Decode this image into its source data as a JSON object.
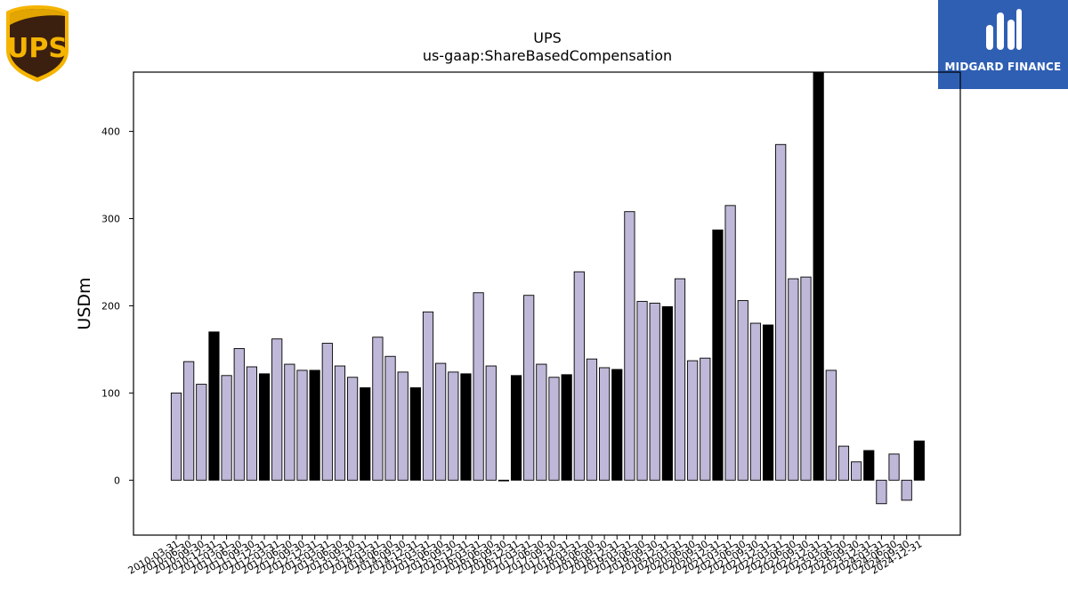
{
  "logos": {
    "left_text": "UPS",
    "right_text": "MIDGARD FINANCE"
  },
  "colors": {
    "bar_fill": "#bfb8d8",
    "bar_highlight": "#000000",
    "bar_edge": "#000000",
    "ups_brown": "#3b1f0f",
    "ups_gold": "#f5b400",
    "midgard_blue": "#2f5fb3"
  },
  "chart_data": {
    "type": "bar",
    "title": "UPS",
    "subtitle": "us-gaap:ShareBasedCompensation",
    "ylabel": "USDm",
    "xlabel": "",
    "ylim": [
      -63,
      468
    ],
    "yticks": [
      0,
      100,
      200,
      300,
      400
    ],
    "grid": false,
    "categories": [
      "2010-03-31",
      "2010-06-30",
      "2010-09-30",
      "2010-12-31",
      "2011-03-31",
      "2011-06-30",
      "2011-09-30",
      "2011-12-31",
      "2012-03-31",
      "2012-06-30",
      "2012-09-30",
      "2012-12-31",
      "2013-03-31",
      "2013-06-30",
      "2013-09-30",
      "2013-12-31",
      "2014-03-31",
      "2014-06-30",
      "2014-09-30",
      "2014-12-31",
      "2015-03-31",
      "2015-06-30",
      "2015-09-30",
      "2015-12-31",
      "2016-03-31",
      "2016-06-30",
      "2016-09-30",
      "2016-12-31",
      "2017-03-31",
      "2017-06-30",
      "2017-09-30",
      "2017-12-31",
      "2018-03-31",
      "2018-06-30",
      "2018-09-30",
      "2018-12-31",
      "2019-03-31",
      "2019-06-30",
      "2019-09-30",
      "2019-12-31",
      "2020-03-31",
      "2020-06-30",
      "2020-09-30",
      "2020-12-31",
      "2021-03-31",
      "2021-06-30",
      "2021-09-30",
      "2021-12-31",
      "2022-03-31",
      "2022-06-30",
      "2022-09-30",
      "2022-12-31",
      "2023-03-31",
      "2023-06-30",
      "2023-09-30",
      "2023-12-31",
      "2024-03-31",
      "2024-06-30",
      "2024-09-30",
      "2024-12-31"
    ],
    "values": [
      100,
      136,
      110,
      170,
      120,
      151,
      130,
      122,
      162,
      133,
      126,
      126,
      157,
      131,
      118,
      106,
      164,
      142,
      124,
      106,
      193,
      134,
      124,
      122,
      215,
      131,
      0,
      120,
      212,
      133,
      118,
      121,
      239,
      139,
      129,
      127,
      308,
      205,
      203,
      199,
      231,
      137,
      140,
      287,
      315,
      206,
      180,
      178,
      385,
      231,
      233,
      470,
      126,
      39,
      21,
      34,
      -27,
      30,
      -23,
      45
    ],
    "highlight": [
      false,
      false,
      false,
      true,
      false,
      false,
      false,
      true,
      false,
      false,
      false,
      true,
      false,
      false,
      false,
      true,
      false,
      false,
      false,
      true,
      false,
      false,
      false,
      true,
      false,
      false,
      false,
      true,
      false,
      false,
      false,
      true,
      false,
      false,
      false,
      true,
      false,
      false,
      false,
      true,
      false,
      false,
      false,
      true,
      false,
      false,
      false,
      true,
      false,
      false,
      false,
      true,
      false,
      false,
      false,
      true,
      false,
      false,
      false,
      true
    ]
  }
}
